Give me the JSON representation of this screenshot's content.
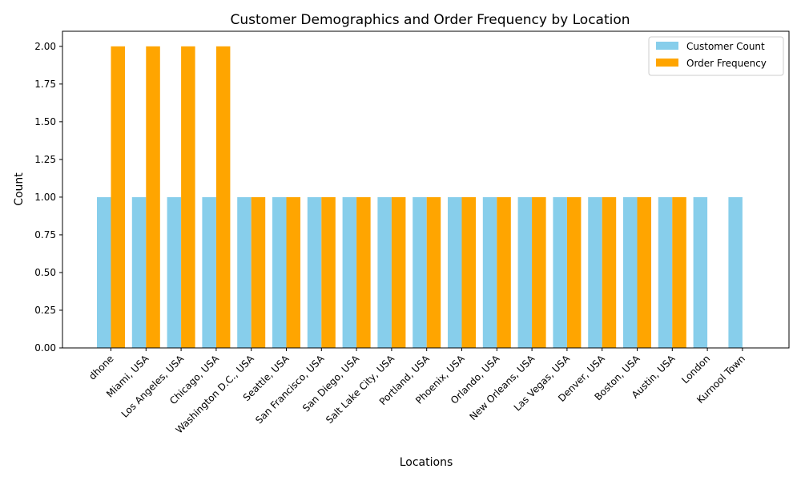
{
  "chart_data": {
    "type": "bar",
    "title": "Customer Demographics and Order Frequency by Location",
    "xlabel": "Locations",
    "ylabel": "Count",
    "ylim": [
      0,
      2.1
    ],
    "yticks": [
      "0.00",
      "0.25",
      "0.50",
      "0.75",
      "1.00",
      "1.25",
      "1.50",
      "1.75",
      "2.00"
    ],
    "legend_position": "top-right",
    "grid": false,
    "categories": [
      "dhone",
      "Miami, USA",
      "Los Angeles, USA",
      "Chicago, USA",
      "Washington D.C., USA",
      "Seattle, USA",
      "San Francisco, USA",
      "San Diego, USA",
      "Salt Lake City, USA",
      "Portland, USA",
      "Phoenix, USA",
      "Orlando, USA",
      "New Orleans, USA",
      "Las Vegas, USA",
      "Denver, USA",
      "Boston, USA",
      "Austin, USA",
      "London",
      "Kurnool Town"
    ],
    "series": [
      {
        "name": "Customer Count",
        "color": "#87CEEB",
        "values": [
          1,
          1,
          1,
          1,
          1,
          1,
          1,
          1,
          1,
          1,
          1,
          1,
          1,
          1,
          1,
          1,
          1,
          1,
          1
        ]
      },
      {
        "name": "Order Frequency",
        "color": "#FFA500",
        "values": [
          2,
          2,
          2,
          2,
          1,
          1,
          1,
          1,
          1,
          1,
          1,
          1,
          1,
          1,
          1,
          1,
          1,
          0,
          0
        ]
      }
    ]
  }
}
